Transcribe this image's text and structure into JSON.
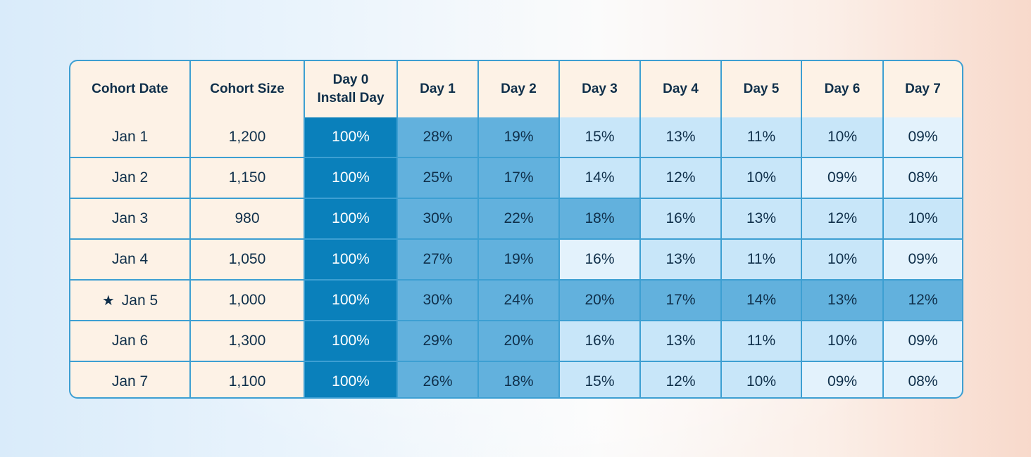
{
  "colors": {
    "border": "#3d9fd2",
    "label_bg": "#fdf2e6",
    "text": "#0f2f4a",
    "day0_bg": "#0a80bb",
    "high_bg": "#62b1dd",
    "low_bg": "#c8e6f9",
    "lowest_bg": "#e3f2fc"
  },
  "chart_data": {
    "type": "table",
    "columns": [
      "Cohort Date",
      "Cohort Size",
      "Day 0\nInstall Day",
      "Day 1",
      "Day 2",
      "Day 3",
      "Day 4",
      "Day 5",
      "Day 6",
      "Day 7"
    ],
    "rows": [
      {
        "date": "Jan 1",
        "size": "1,200",
        "highlight": false,
        "values": [
          "100%",
          "28%",
          "19%",
          "15%",
          "13%",
          "11%",
          "10%",
          "09%"
        ]
      },
      {
        "date": "Jan 2",
        "size": "1,150",
        "highlight": false,
        "values": [
          "100%",
          "25%",
          "17%",
          "14%",
          "12%",
          "10%",
          "09%",
          "08%"
        ]
      },
      {
        "date": "Jan 3",
        "size": "980",
        "highlight": false,
        "values": [
          "100%",
          "30%",
          "22%",
          "18%",
          "16%",
          "13%",
          "12%",
          "10%"
        ]
      },
      {
        "date": "Jan 4",
        "size": "1,050",
        "highlight": false,
        "values": [
          "100%",
          "27%",
          "19%",
          "16%",
          "13%",
          "11%",
          "10%",
          "09%"
        ]
      },
      {
        "date": "Jan 5",
        "size": "1,000",
        "highlight": true,
        "values": [
          "100%",
          "30%",
          "24%",
          "20%",
          "17%",
          "14%",
          "13%",
          "12%"
        ]
      },
      {
        "date": "Jan 6",
        "size": "1,300",
        "highlight": false,
        "values": [
          "100%",
          "29%",
          "20%",
          "16%",
          "13%",
          "11%",
          "10%",
          "09%"
        ]
      },
      {
        "date": "Jan 7",
        "size": "1,100",
        "highlight": false,
        "values": [
          "100%",
          "26%",
          "18%",
          "15%",
          "12%",
          "10%",
          "09%",
          "08%"
        ]
      }
    ],
    "cell_shades": [
      [
        "day0",
        "high",
        "high",
        "low",
        "low",
        "low",
        "low",
        "lowest"
      ],
      [
        "day0",
        "high",
        "high",
        "low",
        "low",
        "low",
        "lowest",
        "lowest"
      ],
      [
        "day0",
        "high",
        "high",
        "high",
        "low",
        "low",
        "low",
        "low"
      ],
      [
        "day0",
        "high",
        "high",
        "lowest",
        "low",
        "low",
        "low",
        "lowest"
      ],
      [
        "day0",
        "high",
        "high",
        "high",
        "high",
        "high",
        "high",
        "high"
      ],
      [
        "day0",
        "high",
        "high",
        "low",
        "low",
        "low",
        "low",
        "lowest"
      ],
      [
        "day0",
        "high",
        "high",
        "low",
        "low",
        "low",
        "lowest",
        "lowest"
      ]
    ]
  }
}
